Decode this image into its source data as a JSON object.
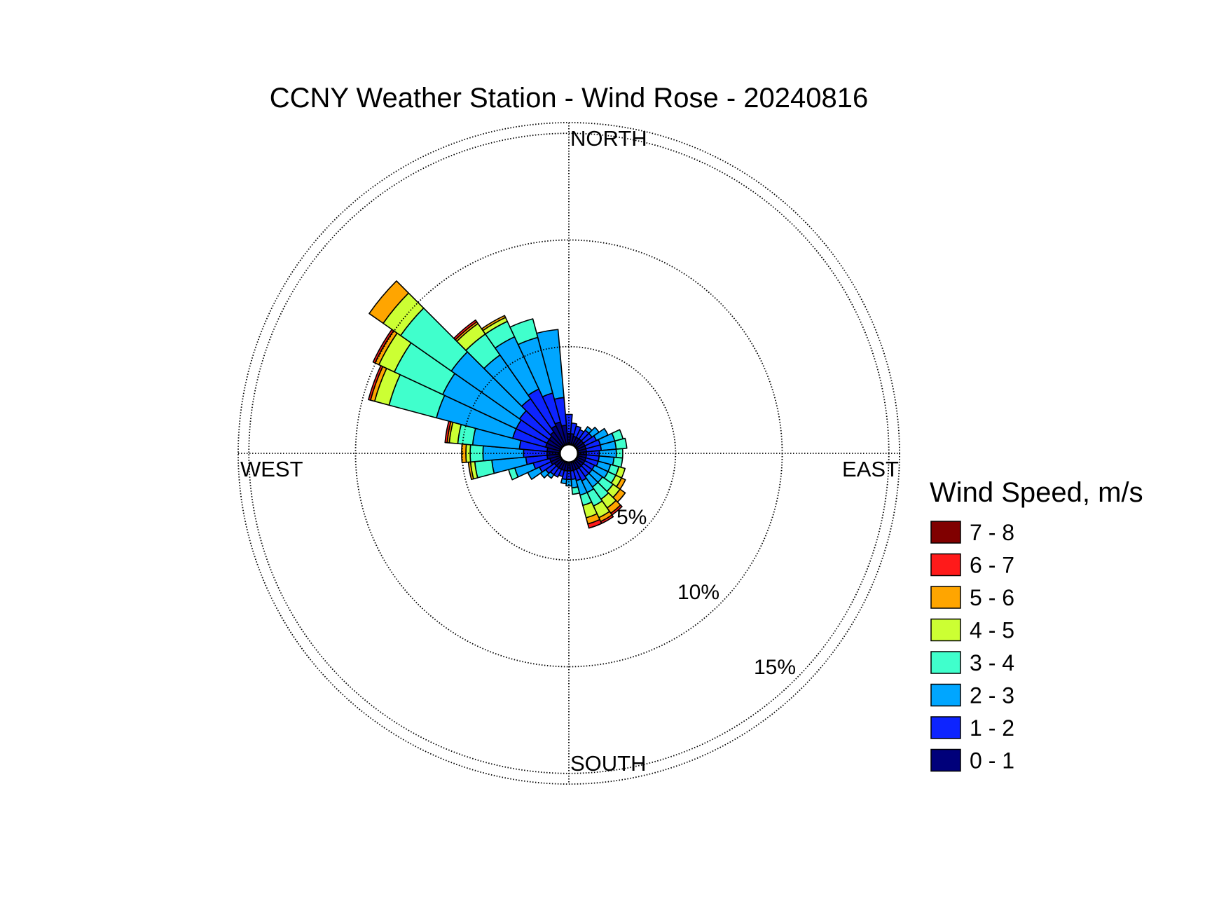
{
  "chart_data": {
    "type": "wind-rose",
    "title": "CCNY Weather Station - Wind Rose - 20240816",
    "direction_labels": {
      "north": "NORTH",
      "east": "EAST",
      "south": "SOUTH",
      "west": "WEST"
    },
    "ring_labels": [
      "5%",
      "10%",
      "15%"
    ],
    "rings_percent": [
      5,
      10,
      15
    ],
    "max_percent": 15.5,
    "calm_circle": true,
    "grid": true,
    "legend": {
      "title": "Wind Speed, m/s",
      "placement": "right",
      "bins": [
        {
          "label": "7 - 8",
          "color": "#800000"
        },
        {
          "label": "6 - 7",
          "color": "#ff1a1a"
        },
        {
          "label": "5 - 6",
          "color": "#ffa500"
        },
        {
          "label": "4 - 5",
          "color": "#ccff33"
        },
        {
          "label": "3 - 4",
          "color": "#40ffcc"
        },
        {
          "label": "2 - 3",
          "color": "#00a6ff"
        },
        {
          "label": "1 - 2",
          "color": "#0d24ff"
        },
        {
          "label": "0 - 1",
          "color": "#00007a"
        }
      ]
    },
    "bins_order": [
      "0 - 1",
      "1 - 2",
      "2 - 3",
      "3 - 4",
      "4 - 5",
      "5 - 6",
      "6 - 7",
      "7 - 8"
    ],
    "direction_width_deg": 10,
    "sectors": [
      {
        "direction_deg": 0,
        "cumulative_percent": [
          0.5,
          1.4
        ]
      },
      {
        "direction_deg": 10,
        "cumulative_percent": [
          0.5,
          1.0
        ]
      },
      {
        "direction_deg": 20,
        "cumulative_percent": [
          0.4,
          0.9
        ]
      },
      {
        "direction_deg": 30,
        "cumulative_percent": [
          0.4,
          0.8
        ]
      },
      {
        "direction_deg": 40,
        "cumulative_percent": [
          0.4,
          0.9,
          1.1
        ]
      },
      {
        "direction_deg": 50,
        "cumulative_percent": [
          0.4,
          0.9,
          1.3
        ]
      },
      {
        "direction_deg": 60,
        "cumulative_percent": [
          0.4,
          1.0,
          1.6
        ]
      },
      {
        "direction_deg": 70,
        "cumulative_percent": [
          0.4,
          1.1,
          1.8,
          2.2
        ]
      },
      {
        "direction_deg": 80,
        "cumulative_percent": [
          0.4,
          1.1,
          1.8,
          2.3
        ]
      },
      {
        "direction_deg": 90,
        "cumulative_percent": [
          0.4,
          1.0,
          1.8,
          2.1
        ]
      },
      {
        "direction_deg": 100,
        "cumulative_percent": [
          0.4,
          1.0,
          1.7,
          2.1
        ]
      },
      {
        "direction_deg": 110,
        "cumulative_percent": [
          0.4,
          1.0,
          1.6,
          2.0,
          2.3
        ]
      },
      {
        "direction_deg": 120,
        "cumulative_percent": [
          0.4,
          0.9,
          1.6,
          2.0,
          2.3,
          2.5
        ]
      },
      {
        "direction_deg": 130,
        "cumulative_percent": [
          0.4,
          0.9,
          1.5,
          2.1,
          2.5,
          2.8
        ]
      },
      {
        "direction_deg": 140,
        "cumulative_percent": [
          0.4,
          0.9,
          1.5,
          2.2,
          2.7,
          3.0,
          3.1
        ]
      },
      {
        "direction_deg": 150,
        "cumulative_percent": [
          0.4,
          1.0,
          1.6,
          2.3,
          2.9,
          3.1,
          3.2
        ]
      },
      {
        "direction_deg": 160,
        "cumulative_percent": [
          0.4,
          0.9,
          1.6,
          2.1,
          2.7,
          3.0,
          3.2
        ]
      },
      {
        "direction_deg": 170,
        "cumulative_percent": [
          0.4,
          0.8,
          1.2,
          1.5
        ]
      },
      {
        "direction_deg": 180,
        "cumulative_percent": [
          0.4,
          0.8,
          1.1
        ]
      },
      {
        "direction_deg": 190,
        "cumulative_percent": [
          0.4,
          0.8,
          1.0
        ]
      },
      {
        "direction_deg": 200,
        "cumulative_percent": [
          0.4,
          0.7
        ]
      },
      {
        "direction_deg": 210,
        "cumulative_percent": [
          0.4,
          0.8
        ]
      },
      {
        "direction_deg": 220,
        "cumulative_percent": [
          0.4,
          0.8,
          1.0
        ]
      },
      {
        "direction_deg": 230,
        "cumulative_percent": [
          0.4,
          0.9,
          1.2
        ]
      },
      {
        "direction_deg": 240,
        "cumulative_percent": [
          0.5,
          1.1,
          1.7
        ]
      },
      {
        "direction_deg": 250,
        "cumulative_percent": [
          0.5,
          1.3,
          2.2,
          2.5
        ]
      },
      {
        "direction_deg": 260,
        "cumulative_percent": [
          0.6,
          1.6,
          3.2,
          4.0,
          4.2,
          4.3
        ]
      },
      {
        "direction_deg": 270,
        "cumulative_percent": [
          0.6,
          1.7,
          3.6,
          4.2,
          4.4,
          4.6
        ]
      },
      {
        "direction_deg": 280,
        "cumulative_percent": [
          0.6,
          1.9,
          4.1,
          4.8,
          5.2,
          5.3,
          5.4
        ]
      },
      {
        "direction_deg": 290,
        "cumulative_percent": [
          0.7,
          2.3,
          6.0,
          8.3,
          9.0,
          9.2,
          9.3
        ]
      },
      {
        "direction_deg": 300,
        "cumulative_percent": [
          0.7,
          2.3,
          6.1,
          8.6,
          9.4,
          9.6,
          9.7
        ]
      },
      {
        "direction_deg": 310,
        "cumulative_percent": [
          0.7,
          2.4,
          6.3,
          9.2,
          10.2,
          11.0
        ]
      },
      {
        "direction_deg": 320,
        "cumulative_percent": [
          0.8,
          2.7,
          5.2,
          6.4,
          7.0,
          7.1,
          7.2
        ]
      },
      {
        "direction_deg": 330,
        "cumulative_percent": [
          1.0,
          2.9,
          5.6,
          6.4,
          6.6,
          6.7
        ]
      },
      {
        "direction_deg": 340,
        "cumulative_percent": [
          1.1,
          2.5,
          5.2,
          6.1
        ]
      },
      {
        "direction_deg": 350,
        "cumulative_percent": [
          0.9,
          2.2,
          5.4
        ]
      }
    ]
  }
}
